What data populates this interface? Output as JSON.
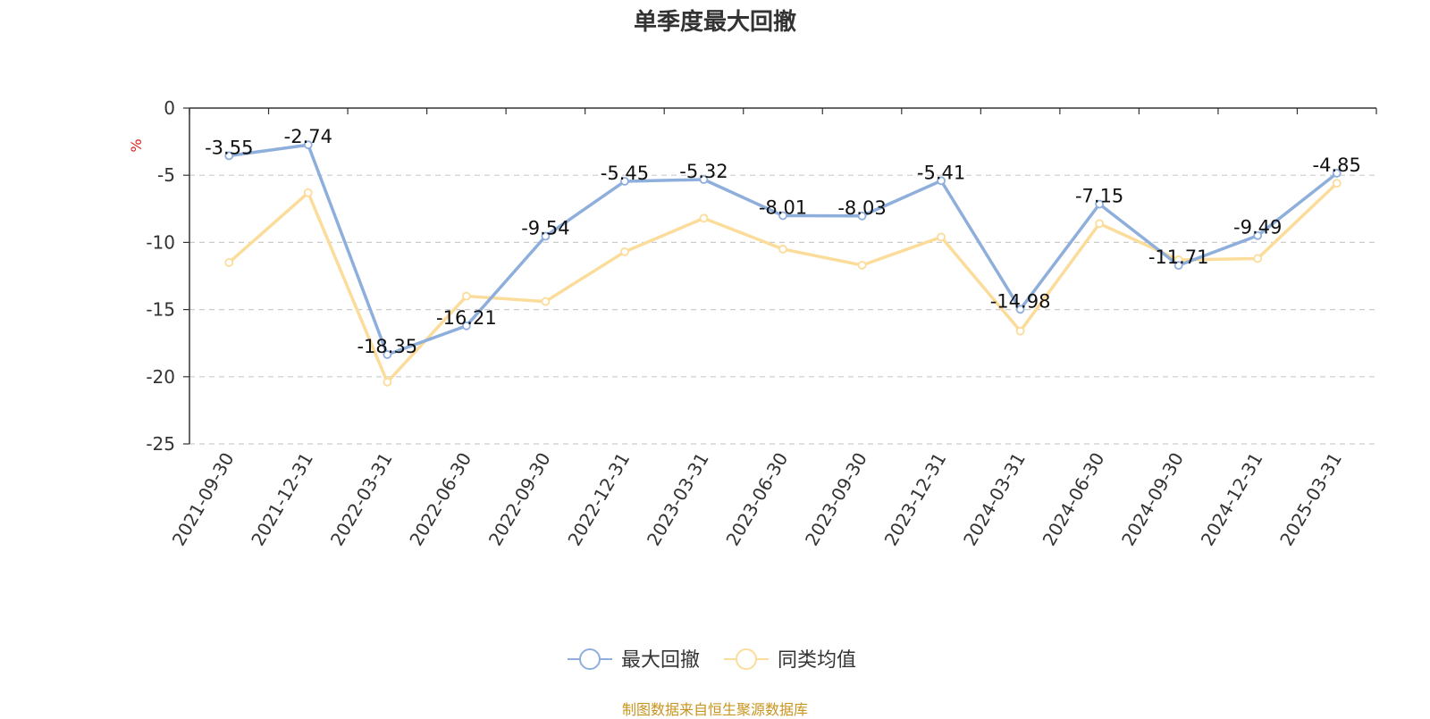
{
  "title": "单季度最大回撤",
  "source": "制图数据来自恒生聚源数据库",
  "colors": {
    "series1": "#8eaedc",
    "series2": "#fbdc9a",
    "unit": "#e02020",
    "source": "#c8951f"
  },
  "chart_data": {
    "type": "line",
    "title": "单季度最大回撤",
    "ylabel": "%",
    "ylim": [
      -25,
      0
    ],
    "yticks": [
      0,
      -5,
      -10,
      -15,
      -20,
      -25
    ],
    "grid": true,
    "legend_position": "bottom-center",
    "categories": [
      "2021-09-30",
      "2021-12-31",
      "2022-03-31",
      "2022-06-30",
      "2022-09-30",
      "2022-12-31",
      "2023-03-31",
      "2023-06-30",
      "2023-09-30",
      "2023-12-31",
      "2024-03-31",
      "2024-06-30",
      "2024-09-30",
      "2024-12-31",
      "2025-03-31"
    ],
    "series": [
      {
        "name": "最大回撤",
        "values": [
          -3.55,
          -2.74,
          -18.35,
          -16.21,
          -9.54,
          -5.45,
          -5.32,
          -8.01,
          -8.03,
          -5.41,
          -14.98,
          -7.15,
          -11.71,
          -9.49,
          -4.85
        ],
        "show_labels": true
      },
      {
        "name": "同类均值",
        "values": [
          -11.5,
          -6.3,
          -20.4,
          -14.0,
          -14.4,
          -10.7,
          -8.2,
          -10.5,
          -11.7,
          -9.6,
          -16.6,
          -8.6,
          -11.3,
          -11.2,
          -5.6
        ],
        "show_labels": false
      }
    ]
  }
}
